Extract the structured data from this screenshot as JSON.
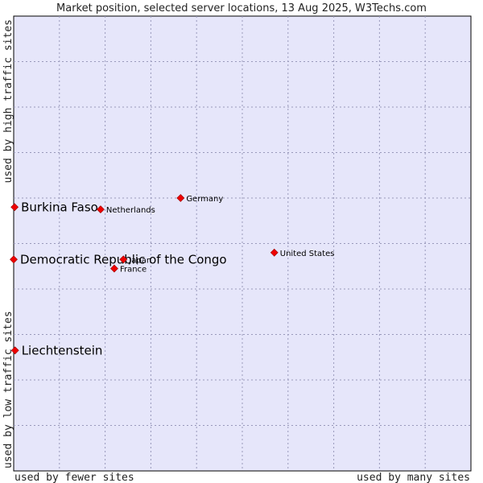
{
  "chart_data": {
    "type": "scatter",
    "title": "Market position, selected server locations, 13 Aug 2025, W3Techs.com",
    "xlabel_left": "used by fewer sites",
    "xlabel_right": "used by many sites",
    "ylabel_bottom": "used by low traffic sites",
    "ylabel_top": "used by high traffic sites",
    "xlim": [
      0,
      100
    ],
    "ylim": [
      0,
      100
    ],
    "grid": true,
    "colors": {
      "plot_background": "#e6e6fa",
      "grid": "#9999bb",
      "marker": "#ee0000",
      "marker_stroke": "#990000"
    },
    "points": [
      {
        "name": "Burkina Faso",
        "x": 0.2,
        "y": 58.0,
        "highlight": true
      },
      {
        "name": "Democratic Republic of the Congo",
        "x": 0.0,
        "y": 46.5,
        "highlight": true
      },
      {
        "name": "Liechtenstein",
        "x": 0.3,
        "y": 26.5,
        "highlight": true
      },
      {
        "name": "Netherlands",
        "x": 19.0,
        "y": 57.5,
        "highlight": false
      },
      {
        "name": "Germany",
        "x": 36.5,
        "y": 60.0,
        "highlight": false
      },
      {
        "name": "Japan",
        "x": 24.0,
        "y": 46.5,
        "highlight": false
      },
      {
        "name": "France",
        "x": 22.0,
        "y": 44.5,
        "highlight": false
      },
      {
        "name": "United States",
        "x": 57.0,
        "y": 48.0,
        "highlight": false
      }
    ]
  }
}
